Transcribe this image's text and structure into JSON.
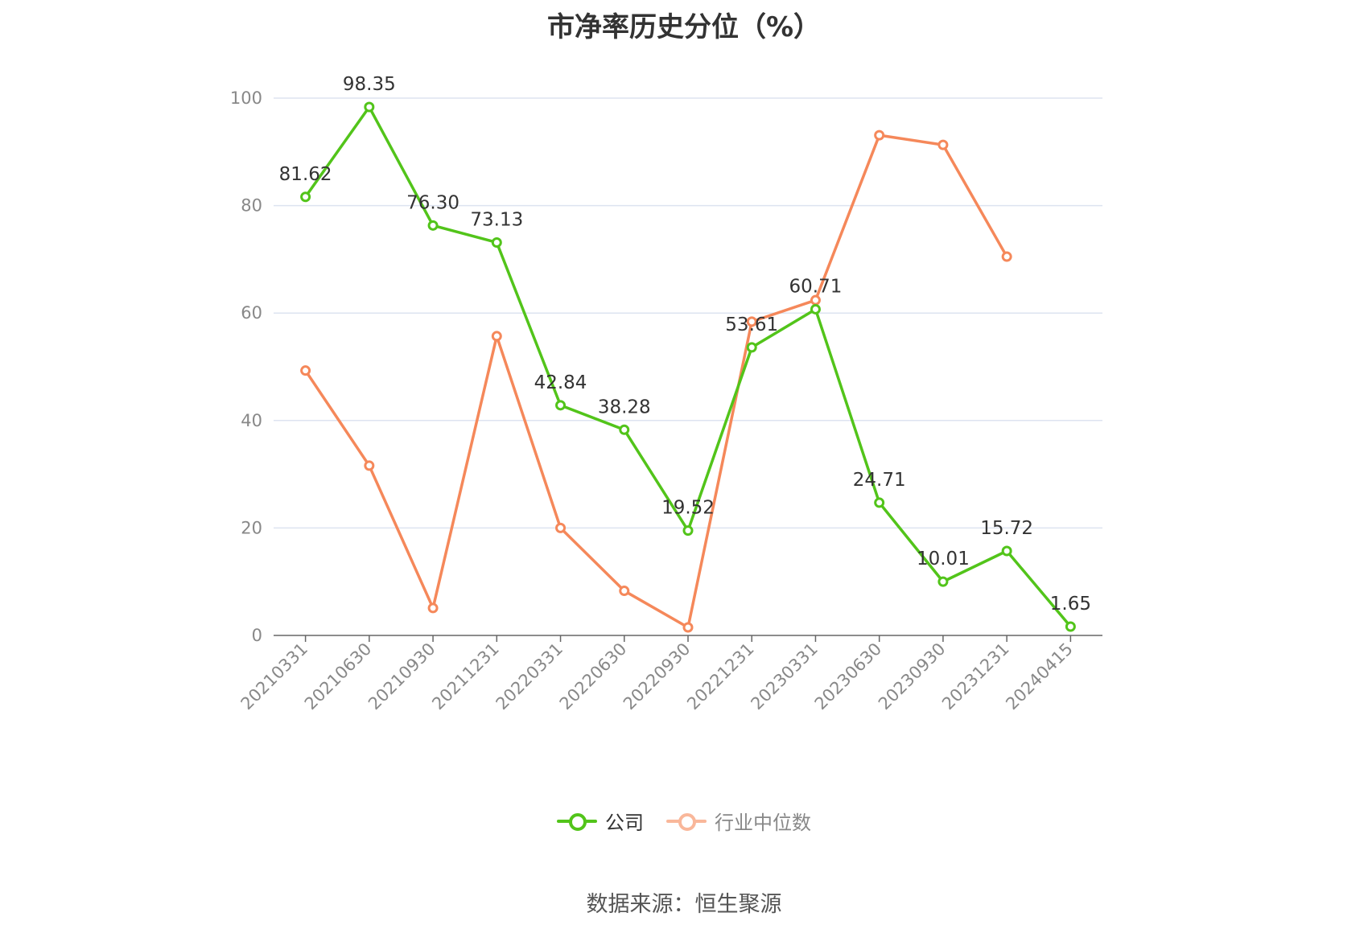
{
  "title": "市净率历史分位（%）",
  "source": "数据来源：恒生聚源",
  "colors": {
    "company": "#52c41a",
    "industry": "#f5885a",
    "industry_legend": "#f9b79a",
    "grid": "#dde3f0",
    "axis": "#666666"
  },
  "legend": [
    {
      "label": "公司"
    },
    {
      "label": "行业中位数"
    }
  ],
  "chart_data": {
    "type": "line",
    "title": "市净率历史分位（%）",
    "categories": [
      "20210331",
      "20210630",
      "20210930",
      "20211231",
      "20220331",
      "20220630",
      "20220930",
      "20221231",
      "20230331",
      "20230630",
      "20230930",
      "20231231",
      "20240415"
    ],
    "ylim": [
      0,
      100
    ],
    "yticks": [
      0,
      20,
      40,
      60,
      80,
      100
    ],
    "grid": true,
    "legend_position": "bottom",
    "series": [
      {
        "name": "公司",
        "values": [
          81.62,
          98.35,
          76.3,
          73.13,
          42.84,
          38.28,
          19.52,
          53.61,
          60.71,
          24.71,
          10.01,
          15.72,
          1.65
        ],
        "labels": [
          "81.62",
          "98.35",
          "76.30",
          "73.13",
          "42.84",
          "38.28",
          "19.52",
          "53.61",
          "60.71",
          "24.71",
          "10.01",
          "15.72",
          "1.65"
        ]
      },
      {
        "name": "行业中位数",
        "values": [
          49.3,
          31.6,
          5.1,
          55.7,
          20.0,
          8.3,
          1.5,
          58.4,
          62.4,
          93.1,
          91.3,
          70.5,
          null
        ]
      }
    ]
  }
}
